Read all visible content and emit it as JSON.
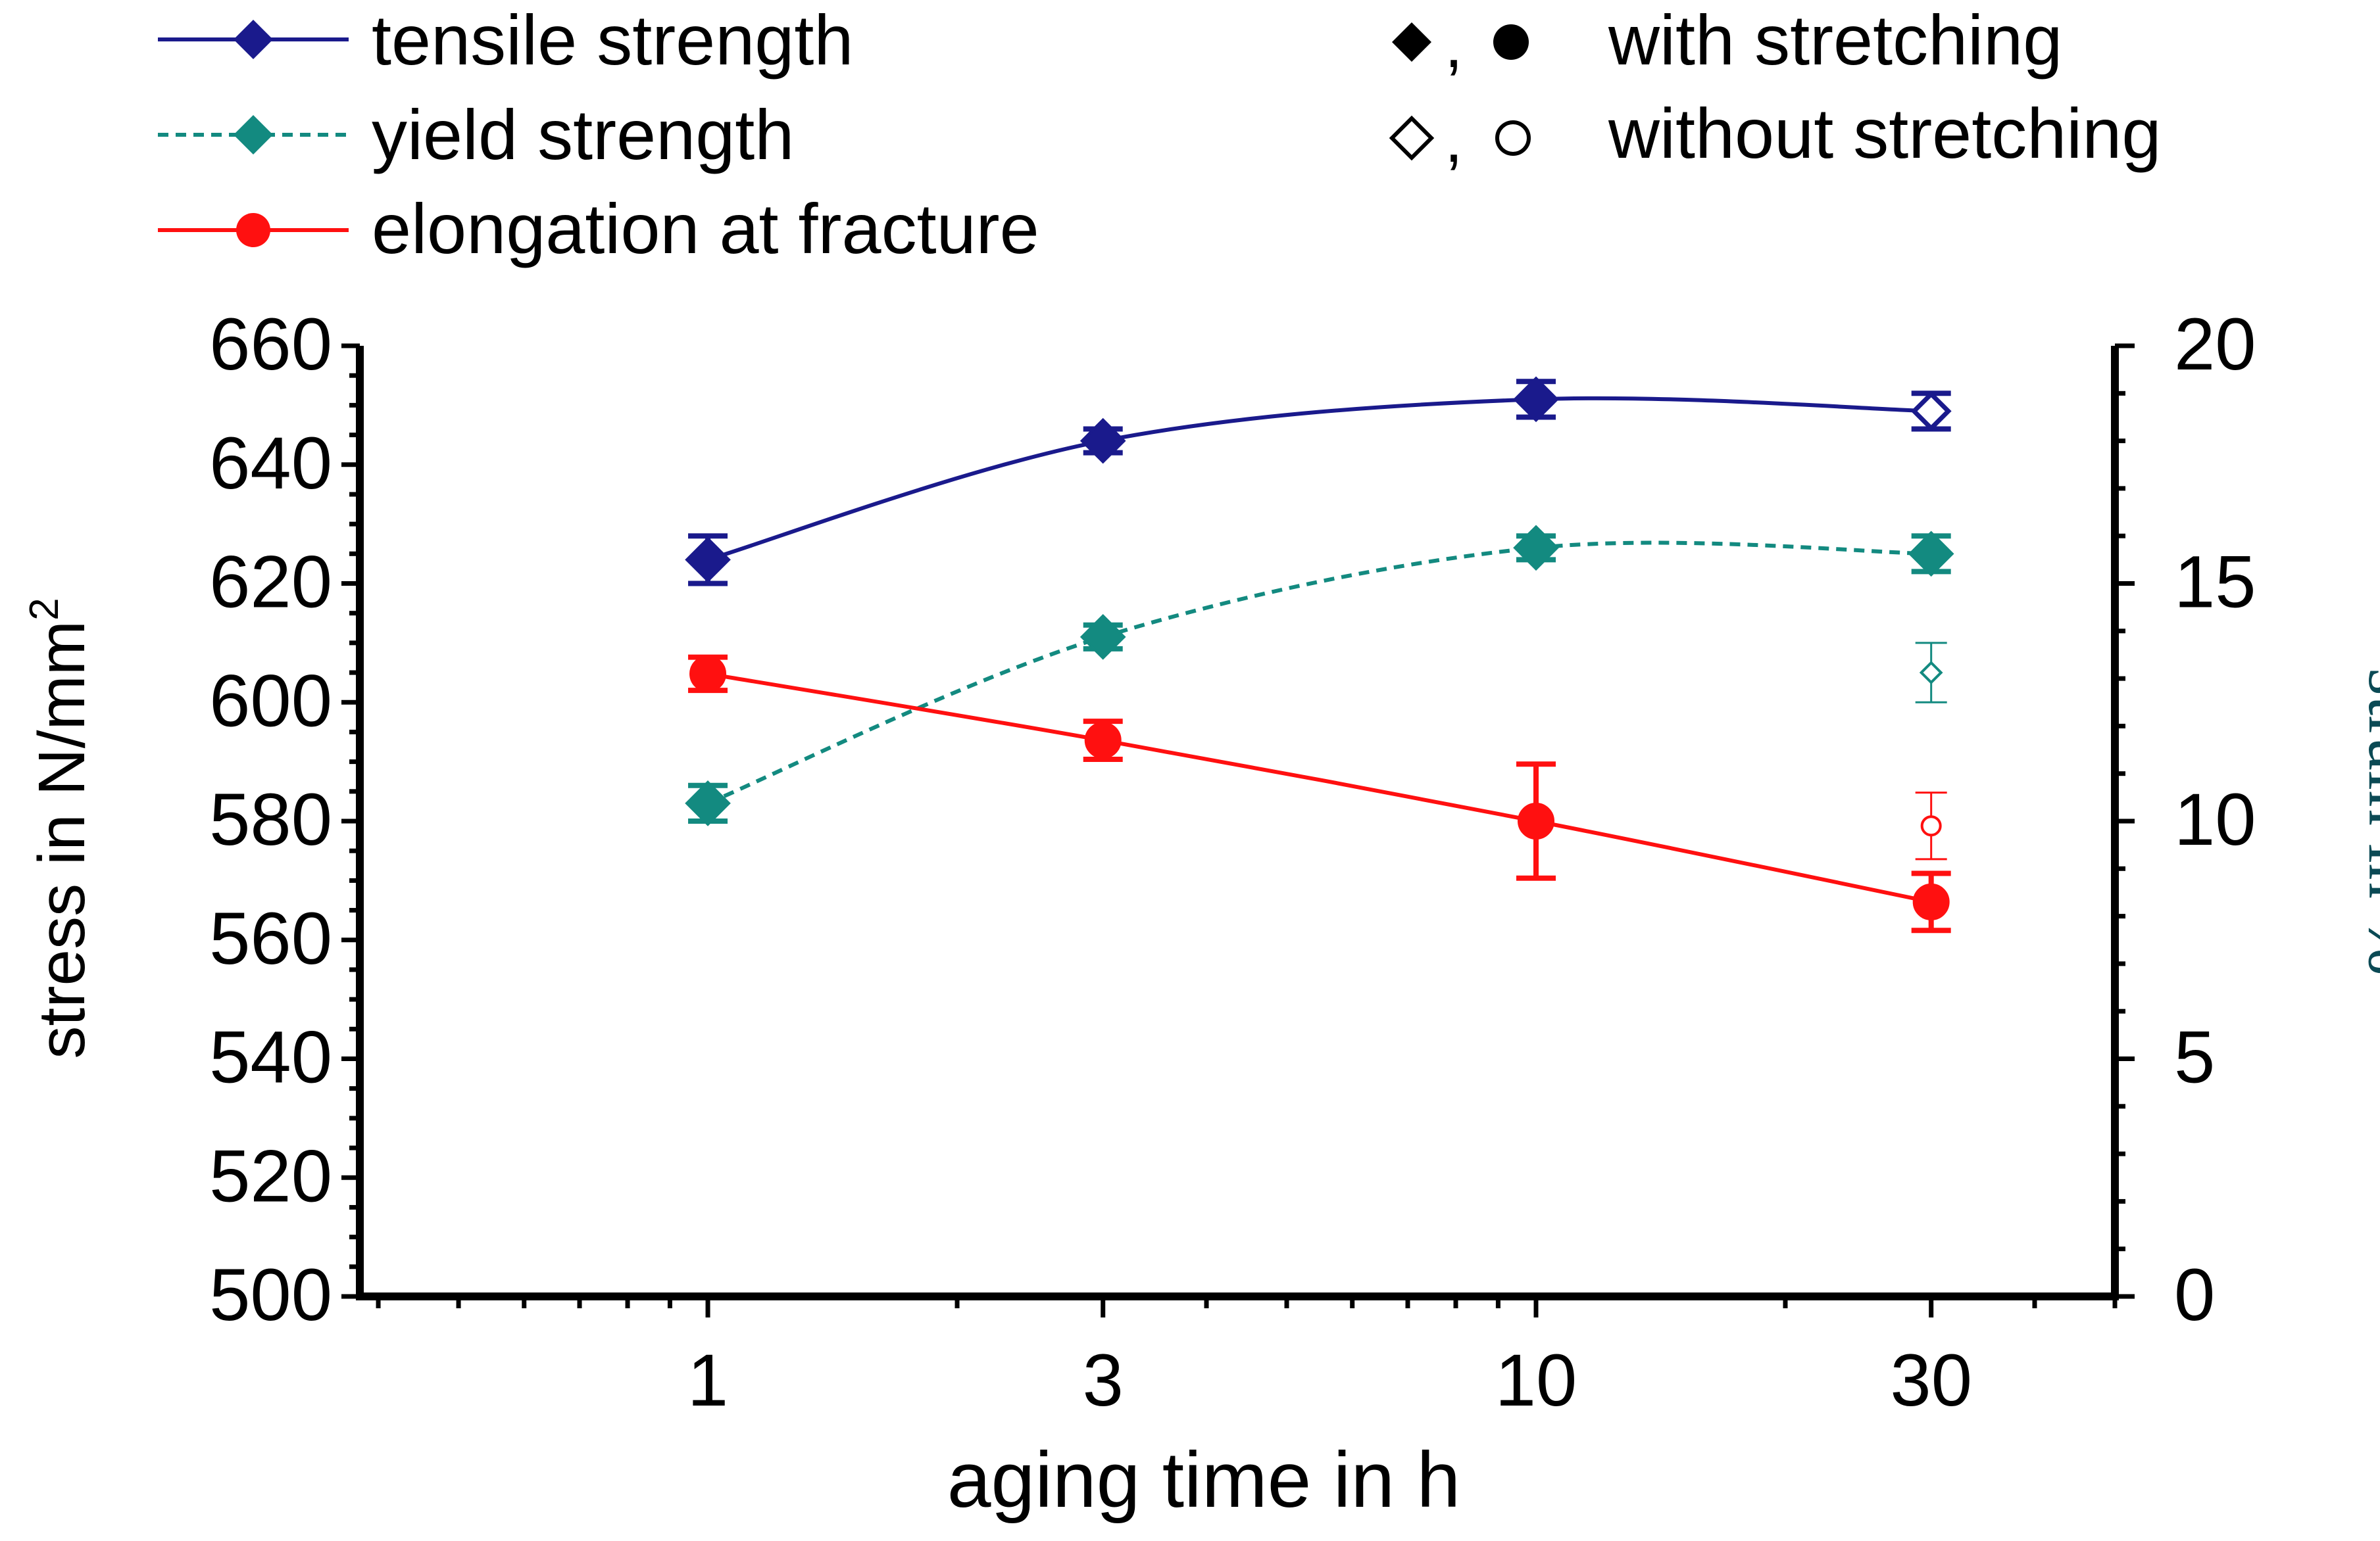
{
  "chart_data": {
    "type": "line",
    "x": [
      1,
      3,
      10,
      30
    ],
    "x_tick_labels": [
      "1",
      "3",
      "10",
      "30"
    ],
    "x_scale": "log",
    "xlim": [
      0.38,
      50
    ],
    "xlabel": "aging time in h",
    "ylabel_left_text": "stress in N/mm",
    "ylabel_left_sup": "2",
    "ylim_left": [
      500,
      660
    ],
    "yticks_left": [
      "500",
      "520",
      "540",
      "560",
      "580",
      "600",
      "620",
      "640",
      "660"
    ],
    "ylabel_right": "strain in %",
    "ylim_right": [
      0,
      20
    ],
    "yticks_right": [
      "0",
      "5",
      "10",
      "15",
      "20"
    ],
    "grid": false,
    "series": [
      {
        "name": "tensile strength",
        "axis": "left",
        "color": "#1a1a8c",
        "marker": "diamond",
        "line_style": "solid",
        "values": [
          624,
          644,
          651,
          649
        ],
        "error": [
          4,
          2,
          3,
          3
        ],
        "filled": [
          true,
          true,
          true,
          false
        ]
      },
      {
        "name": "yield strength",
        "axis": "left",
        "color": "#138a80",
        "marker": "diamond",
        "line_style": "dashed",
        "values": [
          583,
          611,
          626,
          625
        ],
        "error": [
          3,
          2,
          2,
          3
        ],
        "filled": [
          true,
          true,
          true,
          true
        ]
      },
      {
        "name": "elongation at fracture",
        "axis": "right",
        "color": "#ff1010",
        "marker": "circle",
        "line_style": "solid",
        "values": [
          13.1,
          11.7,
          10.0,
          8.3
        ],
        "error": [
          0.35,
          0.4,
          1.2,
          0.6
        ],
        "filled": [
          true,
          true,
          true,
          true
        ]
      }
    ],
    "unstretched_points": [
      {
        "series": "yield strength",
        "x": 30,
        "value": 605,
        "error": 5,
        "axis": "left",
        "marker": "diamond",
        "color": "#138a80"
      },
      {
        "series": "elongation at fracture",
        "x": 30,
        "value": 9.9,
        "error": 0.7,
        "axis": "right",
        "marker": "circle",
        "color": "#ff1010"
      }
    ],
    "legend": {
      "placement": "top-left",
      "entries": [
        "tensile strength",
        "yield strength",
        "elongation at fracture"
      ]
    },
    "marker_legend": {
      "placement": "top-right",
      "comma": ",",
      "entries": [
        {
          "label": "with stretching",
          "filled": true
        },
        {
          "label": "without stretching",
          "filled": false
        }
      ]
    }
  }
}
